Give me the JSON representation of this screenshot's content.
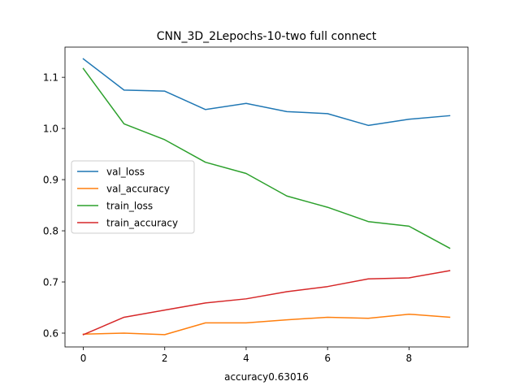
{
  "chart_data": {
    "type": "line",
    "title": "CNN_3D_2Lepochs-10-two full connect",
    "xlabel": "accuracy0.63016",
    "ylabel": "",
    "x": [
      0,
      1,
      2,
      3,
      4,
      5,
      6,
      7,
      8,
      9
    ],
    "xlim": [
      -0.45,
      9.45
    ],
    "ylim": [
      0.573,
      1.159
    ],
    "xticks": [
      0,
      2,
      4,
      6,
      8
    ],
    "xtick_labels": [
      "0",
      "2",
      "4",
      "6",
      "8"
    ],
    "yticks": [
      0.6,
      0.7,
      0.8,
      0.9,
      1.0,
      1.1
    ],
    "ytick_labels": [
      "0.6",
      "0.7",
      "0.8",
      "0.9",
      "1.0",
      "1.1"
    ],
    "grid": false,
    "legend_position": "center-left",
    "series": [
      {
        "name": "val_loss",
        "color": "#1f77b4",
        "values": [
          1.136,
          1.075,
          1.073,
          1.037,
          1.049,
          1.033,
          1.029,
          1.006,
          1.018,
          1.025
        ]
      },
      {
        "name": "val_accuracy",
        "color": "#ff7f0e",
        "values": [
          0.598,
          0.6,
          0.597,
          0.62,
          0.62,
          0.626,
          0.631,
          0.629,
          0.637,
          0.631
        ]
      },
      {
        "name": "train_loss",
        "color": "#2ca02c",
        "values": [
          1.117,
          1.009,
          0.978,
          0.934,
          0.912,
          0.868,
          0.846,
          0.818,
          0.809,
          0.766
        ]
      },
      {
        "name": "train_accuracy",
        "color": "#d62728",
        "values": [
          0.597,
          0.631,
          0.645,
          0.659,
          0.667,
          0.681,
          0.691,
          0.706,
          0.708,
          0.722
        ]
      }
    ]
  }
}
